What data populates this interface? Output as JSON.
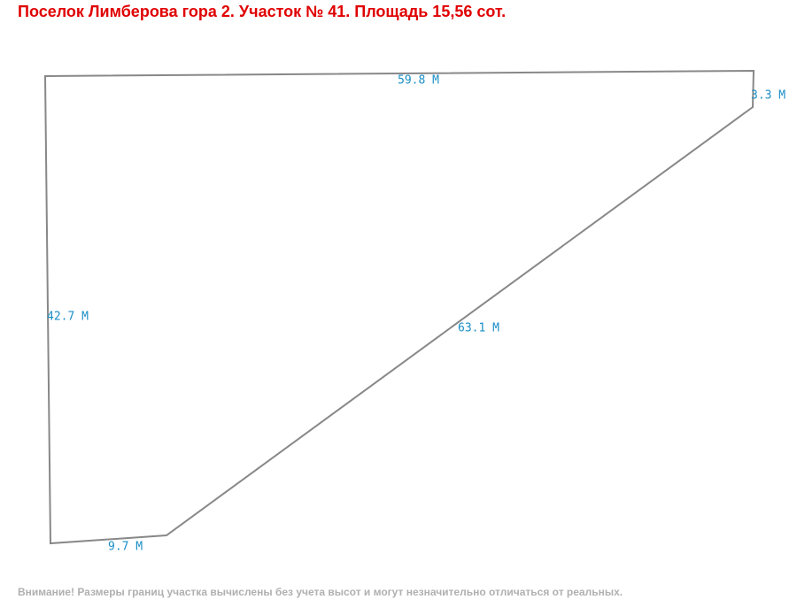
{
  "header": {
    "title": "Поселок Лимберова гора 2. Участок № 41. Площадь 15,56 сот."
  },
  "edges": [
    {
      "label": "59.8 М"
    },
    {
      "label": "3.3 М"
    },
    {
      "label": "63.1 М"
    },
    {
      "label": "9.7 М"
    },
    {
      "label": "42.7 М"
    }
  ],
  "footer": {
    "note": "Внимание! Размеры границ участка вычислены без учета высот и могут незначительно отличаться от реальных."
  }
}
